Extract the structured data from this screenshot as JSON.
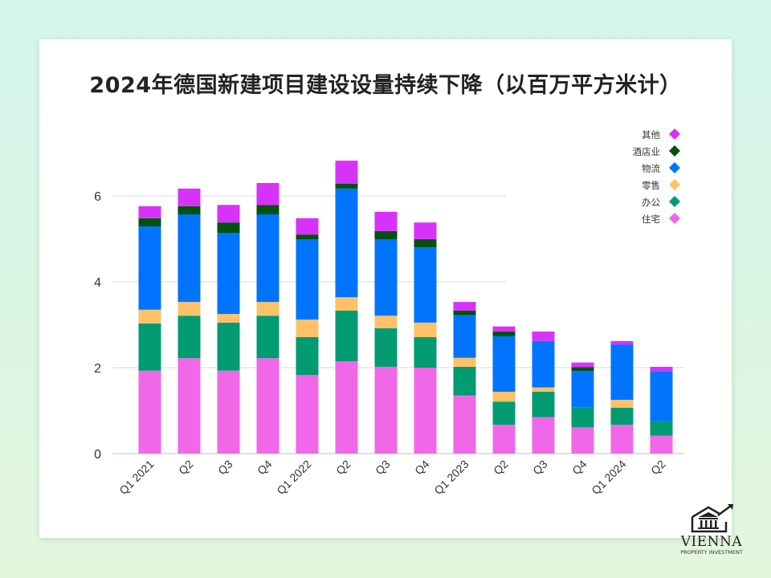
{
  "chart_data": {
    "type": "bar",
    "stacked": true,
    "title": "2024年德国新建项目建设设量持续下降（以百万平方米计）",
    "categories": [
      "Q1 2021",
      "Q2",
      "Q3",
      "Q4",
      "Q1 2022",
      "Q2",
      "Q3",
      "Q4",
      "Q1 2023",
      "Q2",
      "Q3",
      "Q4",
      "Q1 2024",
      "Q2"
    ],
    "series": [
      {
        "name": "住宅",
        "color": "#f068e8",
        "values": [
          1.93,
          2.22,
          1.93,
          2.22,
          1.83,
          2.15,
          2.02,
          2.0,
          1.35,
          0.67,
          0.85,
          0.61,
          0.67,
          0.42
        ]
      },
      {
        "name": "办公",
        "color": "#039b72",
        "values": [
          1.1,
          0.99,
          1.12,
          0.99,
          0.88,
          1.18,
          0.9,
          0.71,
          0.67,
          0.54,
          0.59,
          0.46,
          0.4,
          0.33
        ]
      },
      {
        "name": "零售",
        "color": "#fec167",
        "values": [
          0.32,
          0.32,
          0.2,
          0.32,
          0.41,
          0.31,
          0.29,
          0.34,
          0.21,
          0.23,
          0.1,
          0.0,
          0.18,
          0.0
        ]
      },
      {
        "name": "物流",
        "color": "#0074fd",
        "values": [
          1.94,
          2.04,
          1.89,
          2.04,
          1.87,
          2.53,
          1.78,
          1.75,
          0.99,
          1.29,
          1.08,
          0.85,
          1.29,
          1.17
        ]
      },
      {
        "name": "酒店业",
        "color": "#01510f",
        "values": [
          0.19,
          0.19,
          0.24,
          0.22,
          0.11,
          0.11,
          0.19,
          0.19,
          0.11,
          0.11,
          0.0,
          0.09,
          0.0,
          0.0
        ]
      },
      {
        "name": "其他",
        "color": "#d732fa",
        "values": [
          0.28,
          0.41,
          0.41,
          0.51,
          0.38,
          0.54,
          0.45,
          0.39,
          0.2,
          0.12,
          0.22,
          0.11,
          0.08,
          0.1
        ]
      }
    ],
    "yticks": [
      0,
      2,
      4,
      6
    ],
    "ylim": [
      0,
      7
    ],
    "grid": true,
    "legend_placement": "top-right",
    "xlabel": "",
    "ylabel": ""
  },
  "logo": {
    "name": "VIENNA",
    "sub": "PROPERTY INVESTMENT"
  }
}
